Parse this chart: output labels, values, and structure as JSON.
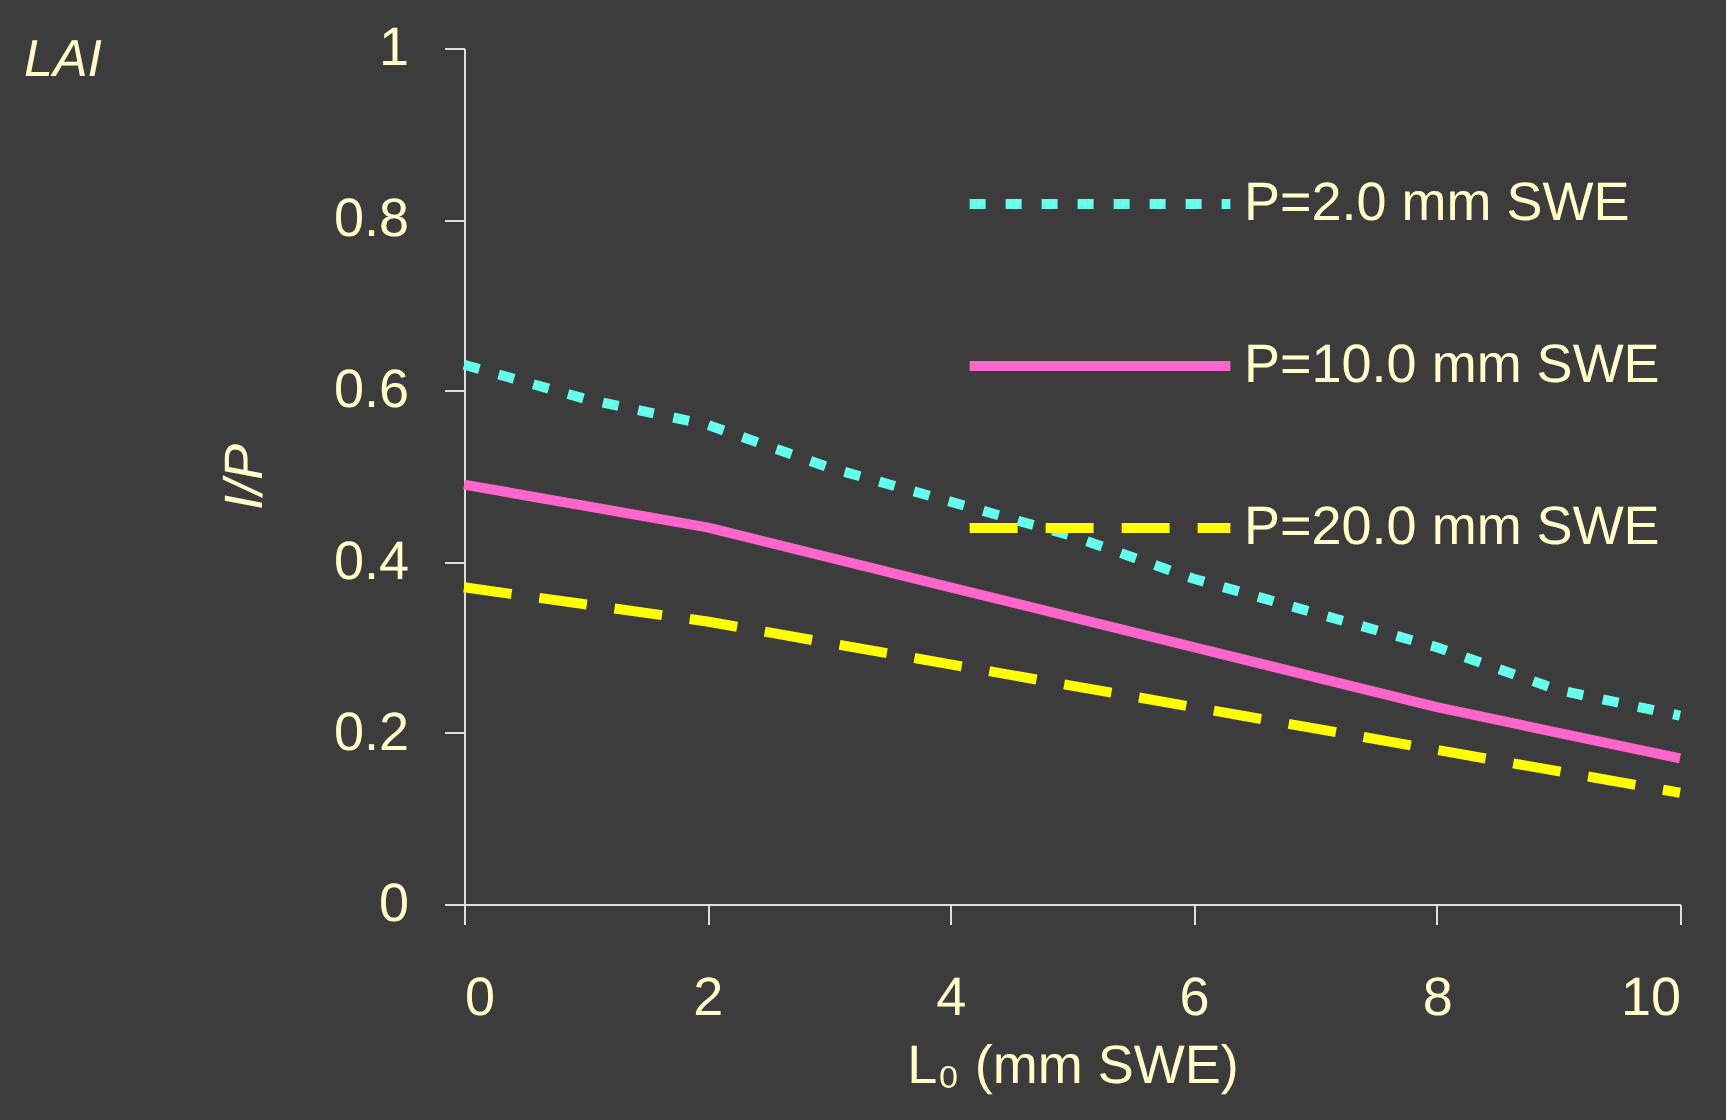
{
  "chart_data": {
    "type": "line",
    "xlabel": "L₀ (mm SWE)",
    "ylabel": "I/P",
    "annotations": [
      "LAI"
    ],
    "x": [
      0,
      1,
      2,
      3,
      4,
      5,
      6,
      7,
      8,
      9,
      10
    ],
    "series": [
      {
        "name": "P=2.0 mm SWE",
        "color": "#66ffee",
        "line_style": "dotted",
        "values": [
          0.63,
          0.59,
          0.56,
          0.51,
          0.47,
          0.43,
          0.38,
          0.34,
          0.3,
          0.25,
          0.22
        ]
      },
      {
        "name": "P=10.0 mm SWE",
        "color": "#ff66cc",
        "line_style": "solid",
        "x": [
          0,
          2,
          4,
          6,
          8,
          10
        ],
        "values": [
          0.49,
          0.44,
          0.37,
          0.3,
          0.23,
          0.17
        ]
      },
      {
        "name": "P=20.0 mm SWE",
        "color": "#ffff00",
        "line_style": "dashed",
        "x": [
          0,
          2,
          4,
          6,
          8,
          10
        ],
        "values": [
          0.37,
          0.33,
          0.28,
          0.23,
          0.18,
          0.13
        ]
      }
    ],
    "xlim": [
      0,
      10
    ],
    "xticks": [
      0,
      2,
      4,
      6,
      8,
      10
    ],
    "ylim": [
      0,
      1
    ],
    "yticks": [
      0,
      0.2,
      0.4,
      0.6,
      0.8,
      1
    ],
    "grid": false,
    "legend": "top right",
    "marker": "none"
  }
}
